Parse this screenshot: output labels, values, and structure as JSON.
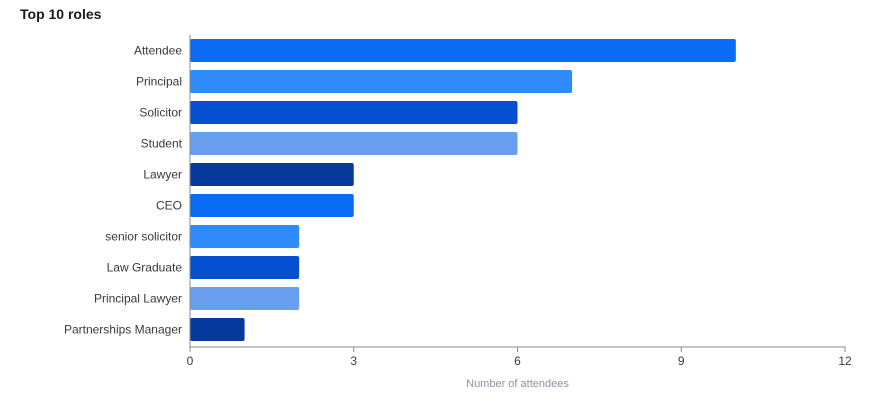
{
  "chart_data": {
    "type": "bar",
    "orientation": "horizontal",
    "title": "Top 10 roles",
    "xlabel": "Number of attendees",
    "ylabel": "",
    "categories": [
      "Attendee",
      "Principal",
      "Solicitor",
      "Student",
      "Lawyer",
      "CEO",
      "senior solicitor",
      "Law Graduate",
      "Principal Lawyer",
      "Partnerships Manager"
    ],
    "values": [
      10,
      7,
      6,
      6,
      3,
      3,
      2,
      2,
      2,
      1
    ],
    "colors": [
      "#0a6cf5",
      "#2f8bfa",
      "#0550d0",
      "#6a9ff0",
      "#053a9c",
      "#0a6cf5",
      "#2f8bfa",
      "#0550d0",
      "#6a9ff0",
      "#053a9c"
    ],
    "xlim": [
      0,
      12
    ],
    "xticks": [
      0,
      3,
      6,
      9,
      12
    ],
    "grid": false
  }
}
